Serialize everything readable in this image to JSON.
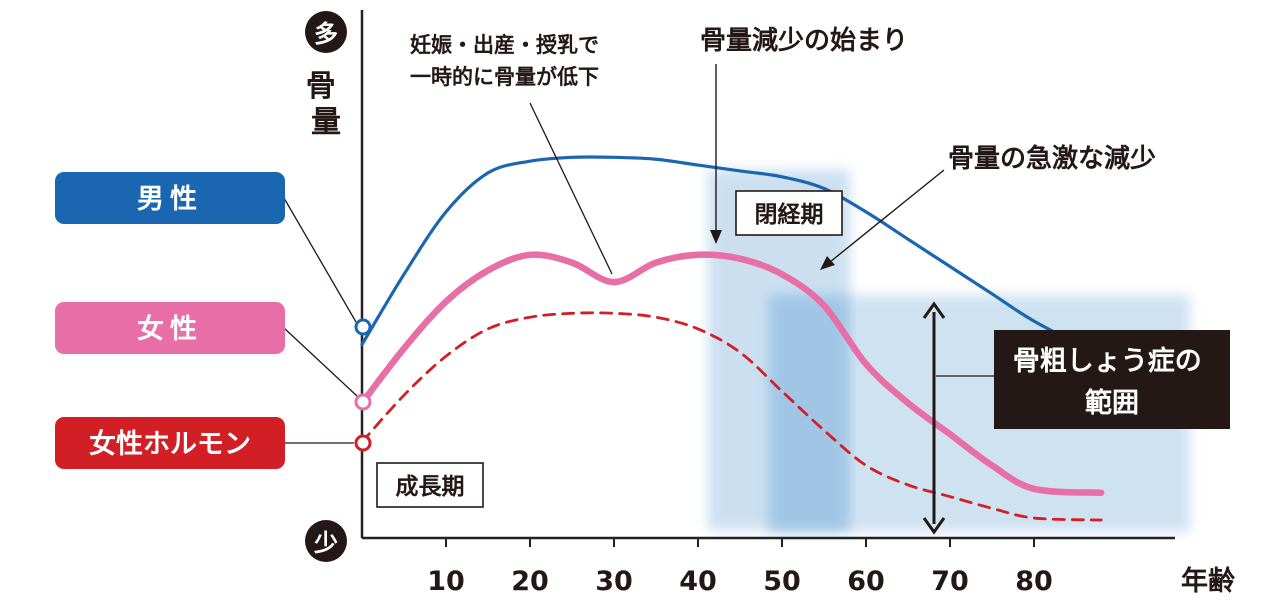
{
  "chart_data": {
    "type": "line",
    "xlabel": "年齢",
    "ylabel": "骨量",
    "y_top_label": "多",
    "y_bottom_label": "少",
    "xlim": [
      0,
      90
    ],
    "ylim": [
      0,
      100
    ],
    "x_ticks": [
      10,
      20,
      30,
      40,
      50,
      60,
      70,
      80
    ],
    "series": [
      {
        "name": "男性",
        "color": "#1a66b0",
        "style": "solid",
        "x": [
          0,
          5,
          10,
          15,
          20,
          25,
          30,
          35,
          40,
          45,
          50,
          55,
          60,
          65,
          70,
          75,
          80,
          88
        ],
        "y": [
          45,
          63,
          79,
          89,
          92,
          93,
          93,
          92.5,
          91,
          89.5,
          88,
          85,
          79,
          72,
          65,
          58,
          51,
          42
        ]
      },
      {
        "name": "女性",
        "color": "#e76ea6",
        "style": "solid",
        "x": [
          0,
          5,
          10,
          15,
          20,
          25,
          30,
          35,
          40,
          45,
          50,
          55,
          60,
          65,
          70,
          75,
          80,
          88
        ],
        "y": [
          30,
          44,
          56,
          64,
          68,
          66,
          61,
          66,
          68,
          67,
          63,
          55,
          40,
          30,
          22,
          14,
          8,
          7
        ]
      },
      {
        "name": "女性ホルモン",
        "color": "#d21f26",
        "style": "dashed",
        "x": [
          0,
          5,
          10,
          15,
          20,
          25,
          30,
          35,
          40,
          45,
          50,
          55,
          60,
          65,
          70,
          75,
          80,
          88
        ],
        "y": [
          20,
          32,
          42,
          49,
          52,
          53,
          53,
          52,
          49,
          43,
          33,
          23,
          14,
          9,
          6,
          3,
          0.5,
          0
        ]
      }
    ],
    "legend_labels": {
      "male": "男性",
      "female": "女性",
      "hormone": "女性ホルモン"
    },
    "annotations": {
      "pregnancy": [
        "妊娠・出産・授乳で",
        "一時的に骨量が低下"
      ],
      "decrease_start": "骨量減少の始まり",
      "rapid_decrease": "骨量の急激な減少",
      "menopause": "閉経期",
      "growth": "成長期",
      "osteoporosis": [
        "骨粗しょう症の",
        "範囲"
      ]
    },
    "colors": {
      "axis": "#222222",
      "band": "#a9cbe8",
      "label_male_bg": "#1a66b0",
      "label_female_bg": "#e76ea6",
      "label_hormone_bg": "#d21f26",
      "osteo_box_bg": "#231815"
    }
  }
}
